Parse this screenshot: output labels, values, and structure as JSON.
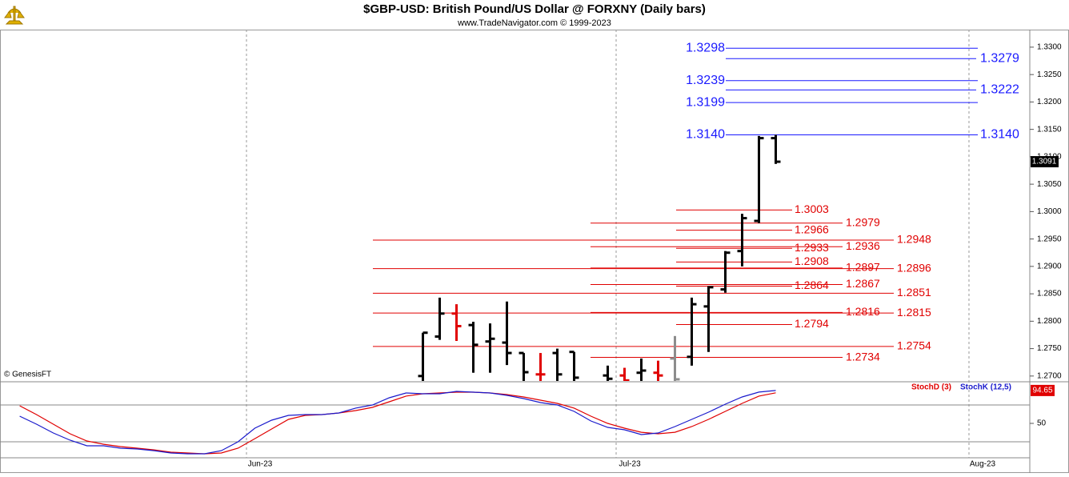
{
  "chart_data": [
    {
      "type": "ohlc",
      "title": "$GBP-USD:  British Pound/US Dollar @ FORXNY  (Daily bars)",
      "subtitle": "www.TradeNavigator.com © 1999-2023",
      "source": "© GenesisFT",
      "x": [
        10,
        11,
        12,
        13,
        14,
        15,
        16,
        17,
        18,
        19,
        21,
        22,
        23,
        24,
        25,
        26,
        27,
        28,
        29,
        30,
        31
      ],
      "open": [
        1.27,
        1.2772,
        1.2814,
        1.2793,
        1.2763,
        1.2761,
        1.2742,
        1.2703,
        1.2742,
        1.2744,
        1.2701,
        1.2701,
        1.2706,
        1.2706,
        1.2732,
        1.2735,
        1.2827,
        1.2858,
        1.2928,
        1.2983,
        1.3134
      ],
      "high": [
        1.2779,
        1.2843,
        1.2831,
        1.2799,
        1.2796,
        1.2836,
        1.2742,
        1.2742,
        1.275,
        1.2744,
        1.2719,
        1.2715,
        1.2732,
        1.2728,
        1.2773,
        1.2843,
        1.2864,
        1.2928,
        1.2996,
        1.3138,
        1.314
      ],
      "low": [
        1.269,
        1.2766,
        1.2764,
        1.2706,
        1.2706,
        1.272,
        1.269,
        1.269,
        1.269,
        1.269,
        1.269,
        1.269,
        1.269,
        1.269,
        1.269,
        1.2719,
        1.2744,
        1.2852,
        1.29,
        1.2979,
        1.3087
      ],
      "close": [
        1.2779,
        1.2814,
        1.2791,
        1.2757,
        1.2768,
        1.2742,
        1.2707,
        1.2703,
        1.2703,
        1.2697,
        1.2695,
        1.2692,
        1.271,
        1.2701,
        1.2694,
        1.2831,
        1.2862,
        1.2925,
        1.2988,
        1.3134,
        1.3091
      ],
      "colors": [
        "#000000",
        "#000000",
        "#e00000",
        "#000000",
        "#000000",
        "#000000",
        "#000000",
        "#e00000",
        "#000000",
        "#000000",
        "#000000",
        "#e00000",
        "#000000",
        "#e00000",
        "#8c8c8c",
        "#000000",
        "#000000",
        "#000000",
        "#000000",
        "#000000",
        "#000000"
      ],
      "levels": [
        {
          "color": "#1a1aff",
          "values": [
            1.3298,
            1.3239,
            1.3199,
            1.314
          ],
          "value_labels": [
            "1.3298",
            "1.3239",
            "1.3199",
            "1.3140"
          ]
        },
        {
          "color": "#1a1aff",
          "values": [
            1.3279,
            1.3222,
            1.314
          ],
          "value_labels": [
            "1.3279",
            "1.3222",
            "1.3140"
          ]
        },
        {
          "color": "#e00000",
          "values": [
            1.3003,
            1.2966,
            1.2933,
            1.2908,
            1.2864,
            1.2794
          ],
          "value_labels": [
            "1.3003",
            "1.2966",
            "1.2933",
            "1.2908",
            "1.2864",
            "1.2794"
          ]
        },
        {
          "color": "#e00000",
          "values": [
            1.2979,
            1.2936,
            1.2897,
            1.2867,
            1.2816,
            1.2734
          ],
          "value_labels": [
            "1.2979",
            "1.2936",
            "1.2897",
            "1.2867",
            "1.2816",
            "1.2734"
          ]
        },
        {
          "color": "#e00000",
          "values": [
            1.2948,
            1.2896,
            1.2851,
            1.2815,
            1.2754
          ],
          "value_labels": [
            "1.2948",
            "1.2896",
            "1.2851",
            "1.2815",
            "1.2754"
          ]
        }
      ],
      "xlim": [
        -15.17,
        46.12
      ],
      "ylim": [
        1.2691,
        1.3332
      ],
      "yticks": [
        {
          "value": 1.27,
          "label": "1.2700"
        },
        {
          "value": 1.275,
          "label": "1.2750"
        },
        {
          "value": 1.28,
          "label": "1.2800"
        },
        {
          "value": 1.285,
          "label": "1.2850"
        },
        {
          "value": 1.29,
          "label": "1.2900"
        },
        {
          "value": 1.295,
          "label": "1.2950"
        },
        {
          "value": 1.3,
          "label": "1.3000"
        },
        {
          "value": 1.305,
          "label": "1.3050"
        },
        {
          "value": 1.31,
          "label": "1.3100"
        },
        {
          "value": 1.315,
          "label": "1.3150"
        },
        {
          "value": 1.32,
          "label": "1.3200"
        },
        {
          "value": 1.325,
          "label": "1.3250"
        },
        {
          "value": 1.33,
          "label": "1.3300"
        }
      ]
    },
    {
      "type": "line",
      "x": [
        -14,
        -13,
        -12,
        -11,
        -10,
        -9,
        -8,
        -7,
        -6,
        -5,
        -4,
        -3,
        -2,
        -1,
        0,
        1,
        2,
        3,
        4,
        5,
        6,
        7,
        8,
        9,
        10,
        11,
        12,
        13,
        14,
        15,
        16,
        17,
        18,
        19,
        20,
        21,
        22,
        23,
        24,
        25,
        26,
        27,
        28,
        29,
        30,
        31
      ],
      "series": [
        {
          "name": "StochD (3)",
          "color": "#e00000",
          "values": [
            73.9,
            62,
            48.9,
            35.9,
            26.1,
            21.7,
            18.5,
            16.3,
            14.1,
            10.9,
            9.8,
            8.7,
            9.8,
            16.3,
            29.3,
            42.4,
            55.4,
            60.9,
            62,
            64.1,
            67.4,
            71.7,
            79.3,
            87,
            90.2,
            91.3,
            92.4,
            92.4,
            91.3,
            89.1,
            85.9,
            81.5,
            77.2,
            70.7,
            59.8,
            50,
            43.5,
            38,
            35.9,
            38,
            45.7,
            55.4,
            66.3,
            77.2,
            87,
            91.5
          ]
        },
        {
          "name": "StochK (12,5)",
          "color": "#1a1acc",
          "values": [
            59.8,
            48.9,
            37,
            27.2,
            19.6,
            19.6,
            16.3,
            15.2,
            13,
            9.8,
            8.7,
            8.7,
            13,
            25,
            43.5,
            54.3,
            60.9,
            62,
            62,
            64.1,
            70.7,
            75,
            84.8,
            91.3,
            90.2,
            90.2,
            93.5,
            92.4,
            91.3,
            88,
            83.7,
            78.3,
            75,
            66.3,
            53.3,
            44.6,
            41.3,
            34.8,
            37,
            45.7,
            55.4,
            65.2,
            76.1,
            85.9,
            92.5,
            94.65
          ]
        }
      ],
      "ref_lines": [
        25,
        75
      ],
      "xlim": [
        -15.17,
        46.12
      ],
      "ylim": [
        3.3,
        105.4
      ],
      "yticks": [
        50
      ],
      "xticks": [
        {
          "value": -0.5,
          "label": "Jun-23"
        },
        {
          "value": 21.5,
          "label": "Jul-23"
        },
        {
          "value": 42.5,
          "label": "Aug-23"
        }
      ]
    }
  ]
}
